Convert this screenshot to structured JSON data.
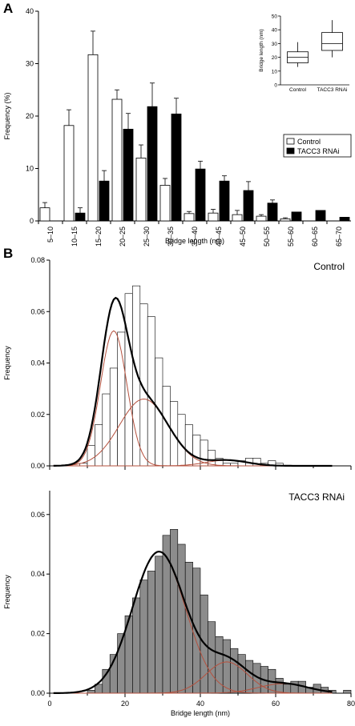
{
  "panels": {
    "a_letter": "A",
    "b_letter": "B"
  },
  "chart_data": [
    {
      "id": "A",
      "type": "bar",
      "xlabel": "Bridge length (nm)",
      "ylabel": "Frequency (%)",
      "ylim": [
        0,
        40
      ],
      "yticks": [
        0,
        10,
        20,
        30,
        40
      ],
      "categories": [
        "5–10",
        "10–15",
        "15–20",
        "20–25",
        "25–30",
        "30–35",
        "35–40",
        "40–45",
        "45–50",
        "50–55",
        "55–60",
        "60–65",
        "65–70"
      ],
      "series": [
        {
          "name": "Control",
          "color": "#ffffff",
          "values": [
            2.5,
            18.2,
            31.7,
            23.2,
            12.0,
            6.8,
            1.4,
            1.5,
            1.2,
            0.9,
            0.4,
            0.0,
            0.0
          ],
          "errors": [
            1.0,
            3.0,
            4.5,
            1.8,
            2.5,
            1.3,
            0.4,
            0.7,
            0.8,
            0.3,
            0.2,
            0.0,
            0.0
          ]
        },
        {
          "name": "TACC3 RNAi",
          "color": "#000000",
          "values": [
            0.0,
            1.5,
            7.6,
            17.5,
            21.8,
            20.4,
            9.9,
            7.6,
            5.8,
            3.4,
            1.7,
            2.0,
            0.7
          ],
          "errors": [
            0.0,
            1.0,
            2.0,
            3.0,
            4.5,
            3.0,
            1.5,
            1.0,
            1.7,
            0.6,
            0.0,
            0.0,
            0.0
          ]
        }
      ],
      "legend": "right",
      "inset": {
        "type": "box",
        "ylabel": "Bridge length (nm)",
        "ylim": [
          0,
          50
        ],
        "yticks": [
          0,
          10,
          20,
          30,
          40,
          50
        ],
        "categories": [
          "Control",
          "TACC3 RNAi"
        ],
        "boxes": [
          {
            "min": 13,
            "q1": 16,
            "median": 20,
            "q3": 24,
            "max": 31
          },
          {
            "min": 20,
            "q1": 25,
            "median": 30,
            "q3": 38,
            "max": 47
          }
        ]
      }
    },
    {
      "id": "B-top",
      "type": "bar",
      "annotation": "Control",
      "ylabel": "Frequency",
      "xlim": [
        0,
        80
      ],
      "ylim": [
        0,
        0.08
      ],
      "yticks": [
        "0.00",
        "0.02",
        "0.04",
        "0.06",
        "0.08"
      ],
      "bin_width": 2,
      "bin_start": 8,
      "values": [
        0.001,
        0.008,
        0.016,
        0.028,
        0.038,
        0.052,
        0.067,
        0.07,
        0.063,
        0.058,
        0.042,
        0.031,
        0.025,
        0.02,
        0.016,
        0.012,
        0.01,
        0.006,
        0.003,
        0.001,
        0.001,
        0.002,
        0.003,
        0.003,
        0.001,
        0.002,
        0.001
      ],
      "fits": [
        {
          "role": "total",
          "color": "#000000",
          "components": [
            [
              0.0525,
              17,
              3.5
            ],
            [
              0.026,
              25,
              6.5
            ],
            [
              0.0022,
              47,
              5.5
            ]
          ]
        },
        {
          "role": "component",
          "color": "#b5513e",
          "components": [
            [
              0.0525,
              17,
              3.5
            ]
          ]
        },
        {
          "role": "component",
          "color": "#b5513e",
          "components": [
            [
              0.026,
              25,
              6.5
            ]
          ]
        },
        {
          "role": "component",
          "color": "#b5513e",
          "components": [
            [
              0.0022,
              47,
              5.5
            ]
          ]
        }
      ]
    },
    {
      "id": "B-bottom",
      "type": "bar",
      "annotation": "TACC3 RNAi",
      "xlabel": "Bridge length (nm)",
      "ylabel": "Frequency",
      "xlim": [
        0,
        80
      ],
      "xticks": [
        0,
        20,
        40,
        60,
        80
      ],
      "ylim": [
        0,
        0.068
      ],
      "yticks": [
        "0.00",
        "0.02",
        "0.04",
        "0.06"
      ],
      "bin_width": 2,
      "bin_start": 10,
      "values": [
        0.001,
        0.003,
        0.008,
        0.013,
        0.02,
        0.026,
        0.032,
        0.038,
        0.041,
        0.046,
        0.053,
        0.055,
        0.05,
        0.044,
        0.042,
        0.033,
        0.024,
        0.019,
        0.018,
        0.015,
        0.013,
        0.011,
        0.01,
        0.009,
        0.008,
        0.005,
        0.003,
        0.004,
        0.004,
        0.002,
        0.003,
        0.002,
        0.001,
        0.0,
        0.001
      ],
      "fits": [
        {
          "role": "total",
          "color": "#000000",
          "components": [
            [
              0.0475,
              29,
              7.0
            ],
            [
              0.0105,
              47,
              5.5
            ],
            [
              0.0032,
              62,
              6.5
            ]
          ]
        },
        {
          "role": "component",
          "color": "#b5513e",
          "components": [
            [
              0.0475,
              29,
              7.0
            ]
          ]
        },
        {
          "role": "component",
          "color": "#b5513e",
          "components": [
            [
              0.0105,
              47,
              5.5
            ]
          ]
        },
        {
          "role": "component",
          "color": "#b5513e",
          "components": [
            [
              0.0032,
              62,
              6.5
            ]
          ]
        }
      ]
    }
  ]
}
